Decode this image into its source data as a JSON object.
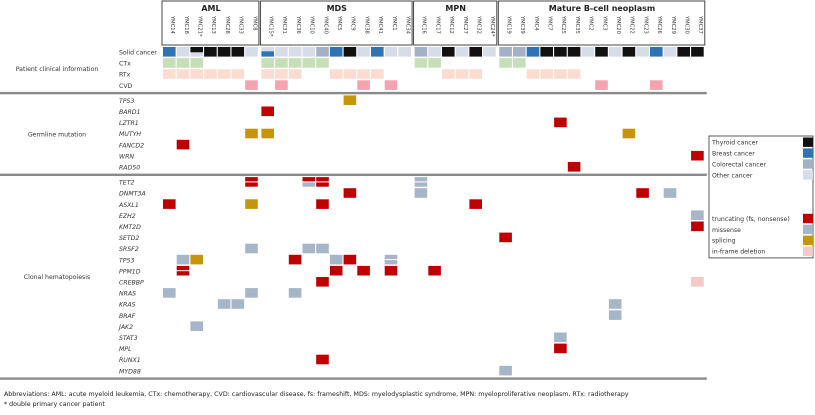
{
  "chart_data": {
    "type": "heatmap",
    "title": "",
    "groups": [
      {
        "name": "AML",
        "samples": [
          "YMC14",
          "YMC18",
          "YMC21*",
          "YMC13",
          "YMC28",
          "YMC33",
          "YMC8"
        ]
      },
      {
        "name": "MDS",
        "samples": [
          "YMC15*",
          "YMC31",
          "YMC36",
          "YMC10",
          "YMC40",
          "YMC5",
          "YMC9",
          "YMC38",
          "YMC41",
          "YMC1",
          "YMC34"
        ]
      },
      {
        "name": "MPN",
        "samples": [
          "YMC16",
          "YMC17",
          "YMC12",
          "YMC27",
          "YMC32",
          "YMC24*"
        ]
      },
      {
        "name": "Mature B-cell neoplasm",
        "samples": [
          "YMC19",
          "YMC39",
          "YMC4",
          "YMC7",
          "YMC25",
          "YMC35",
          "YMC2",
          "YMC3",
          "YMC20",
          "YMC22",
          "YMC23",
          "YMC26",
          "YMC29",
          "YMC30",
          "YMC37"
        ]
      }
    ],
    "sections": [
      {
        "name": "Patient clinical information",
        "rows": [
          {
            "label": "Solid cancer",
            "gene": false,
            "values": [
              "breast",
              "other",
              "thyroid*",
              "thyroid",
              "thyroid",
              "thyroid",
              "other",
              "breast*",
              "other",
              "other",
              "other",
              "colorectal",
              "breast",
              "thyroid",
              "other",
              "breast",
              "other",
              "other",
              "colorectal",
              "other",
              "thyroid",
              "other",
              "thyroid",
              "other",
              "colorectal",
              "colorectal",
              "breast",
              "thyroid",
              "thyroid",
              "thyroid",
              "other",
              "thyroid",
              "other",
              "thyroid",
              "other",
              "breast",
              "other",
              "thyroid",
              "thyroid"
            ]
          },
          {
            "label": "CTx",
            "gene": false,
            "values": [
              "ctx",
              "ctx",
              "ctx",
              "",
              "",
              "",
              "",
              "ctx",
              "ctx",
              "ctx",
              "ctx",
              "ctx",
              "",
              "",
              "",
              "",
              "",
              "",
              "ctx",
              "ctx",
              "",
              "",
              "",
              "",
              "ctx",
              "ctx",
              "",
              "",
              "",
              "",
              "",
              "",
              "",
              "",
              "",
              "",
              "",
              "",
              ""
            ]
          },
          {
            "label": "RTx",
            "gene": false,
            "values": [
              "rtx",
              "rtx",
              "rtx",
              "rtx",
              "rtx",
              "rtx",
              "",
              "rtx",
              "rtx",
              "rtx",
              "",
              "",
              "rtx",
              "rtx",
              "rtx",
              "rtx",
              "",
              "",
              "",
              "",
              "rtx",
              "rtx",
              "rtx",
              "",
              "",
              "",
              "rtx",
              "rtx",
              "rtx",
              "rtx",
              "",
              "",
              "",
              "",
              "",
              "",
              "",
              "",
              ""
            ]
          },
          {
            "label": "CVD",
            "gene": false,
            "values": [
              "",
              "",
              "",
              "",
              "",
              "",
              "cvd",
              "",
              "cvd",
              "",
              "",
              "",
              "",
              "",
              "cvd",
              "",
              "cvd",
              "",
              "",
              "",
              "",
              "",
              "",
              "",
              "",
              "",
              "",
              "",
              "",
              "",
              "",
              "cvd",
              "",
              "",
              "",
              "cvd",
              "",
              "",
              ""
            ]
          }
        ]
      },
      {
        "name": "Germline mutation",
        "rows": [
          {
            "label": "TP53",
            "gene": true,
            "hits": [
              {
                "s": "YMC9",
                "t": "splicing"
              }
            ]
          },
          {
            "label": "BARD1",
            "gene": true,
            "hits": [
              {
                "s": "YMC15*",
                "t": "truncating"
              }
            ]
          },
          {
            "label": "LZTR1",
            "gene": true,
            "hits": [
              {
                "s": "YMC25",
                "t": "truncating"
              }
            ]
          },
          {
            "label": "MUTYH",
            "gene": true,
            "hits": [
              {
                "s": "YMC8",
                "t": "splicing"
              },
              {
                "s": "YMC15*",
                "t": "splicing"
              },
              {
                "s": "YMC22",
                "t": "splicing"
              }
            ]
          },
          {
            "label": "FANCD2",
            "gene": true,
            "hits": [
              {
                "s": "YMC18",
                "t": "truncating"
              }
            ]
          },
          {
            "label": "WRN",
            "gene": true,
            "hits": [
              {
                "s": "YMC37",
                "t": "truncating"
              }
            ]
          },
          {
            "label": "RAD50",
            "gene": true,
            "hits": [
              {
                "s": "YMC35",
                "t": "truncating"
              }
            ]
          }
        ]
      },
      {
        "name": "Clonal hematopoiesis",
        "rows": [
          {
            "label": "TET2",
            "gene": true,
            "hits": [
              {
                "s": "YMC8",
                "t": "truncating",
                "t2": "truncating"
              },
              {
                "s": "YMC10",
                "t": "truncating",
                "t2": "missense"
              },
              {
                "s": "YMC40",
                "t": "truncating",
                "t2": "truncating"
              },
              {
                "s": "YMC16",
                "t": "missense",
                "t2": "missense"
              }
            ]
          },
          {
            "label": "DNMT3A",
            "gene": true,
            "hits": [
              {
                "s": "YMC9",
                "t": "truncating"
              },
              {
                "s": "YMC16",
                "t": "missense"
              },
              {
                "s": "YMC23",
                "t": "truncating"
              },
              {
                "s": "YMC29",
                "t": "missense"
              }
            ]
          },
          {
            "label": "ASXL1",
            "gene": true,
            "hits": [
              {
                "s": "YMC14",
                "t": "truncating"
              },
              {
                "s": "YMC8",
                "t": "splicing"
              },
              {
                "s": "YMC40",
                "t": "truncating"
              },
              {
                "s": "YMC32",
                "t": "truncating"
              }
            ]
          },
          {
            "label": "EZH2",
            "gene": true,
            "hits": [
              {
                "s": "YMC37",
                "t": "missense"
              }
            ]
          },
          {
            "label": "KMT2D",
            "gene": true,
            "hits": [
              {
                "s": "YMC37",
                "t": "truncating"
              }
            ]
          },
          {
            "label": "SETD2",
            "gene": true,
            "hits": [
              {
                "s": "YMC19",
                "t": "truncating"
              }
            ]
          },
          {
            "label": "SRSF2",
            "gene": true,
            "hits": [
              {
                "s": "YMC8",
                "t": "missense"
              },
              {
                "s": "YMC10",
                "t": "missense"
              },
              {
                "s": "YMC40",
                "t": "missense"
              }
            ]
          },
          {
            "label": "TP53",
            "gene": true,
            "hits": [
              {
                "s": "YMC18",
                "t": "missense"
              },
              {
                "s": "YMC21*",
                "t": "splicing"
              },
              {
                "s": "YMC36",
                "t": "truncating"
              },
              {
                "s": "YMC5",
                "t": "missense"
              },
              {
                "s": "YMC9",
                "t": "truncating"
              },
              {
                "s": "YMC1",
                "t": "missense",
                "t2": "missense"
              }
            ]
          },
          {
            "label": "PPM1D",
            "gene": true,
            "hits": [
              {
                "s": "YMC18",
                "t": "truncating",
                "t2": "truncating"
              },
              {
                "s": "YMC5",
                "t": "truncating"
              },
              {
                "s": "YMC38",
                "t": "truncating"
              },
              {
                "s": "YMC1",
                "t": "truncating"
              },
              {
                "s": "YMC17",
                "t": "truncating"
              }
            ]
          },
          {
            "label": "CREBBP",
            "gene": true,
            "hits": [
              {
                "s": "YMC40",
                "t": "truncating"
              },
              {
                "s": "YMC37",
                "t": "inframe"
              }
            ]
          },
          {
            "label": "NRAS",
            "gene": true,
            "hits": [
              {
                "s": "YMC14",
                "t": "missense"
              },
              {
                "s": "YMC8",
                "t": "missense"
              },
              {
                "s": "YMC36",
                "t": "missense"
              }
            ]
          },
          {
            "label": "KRAS",
            "gene": true,
            "hits": [
              {
                "s": "YMC28",
                "t": "missense"
              },
              {
                "s": "YMC33",
                "t": "missense"
              },
              {
                "s": "YMC20",
                "t": "missense"
              }
            ]
          },
          {
            "label": "BRAF",
            "gene": true,
            "hits": [
              {
                "s": "YMC20",
                "t": "missense"
              }
            ]
          },
          {
            "label": "JAK2",
            "gene": true,
            "hits": [
              {
                "s": "YMC21*",
                "t": "missense"
              }
            ]
          },
          {
            "label": "STAT3",
            "gene": true,
            "hits": [
              {
                "s": "YMC25",
                "t": "missense"
              }
            ]
          },
          {
            "label": "MPL",
            "gene": true,
            "hits": [
              {
                "s": "YMC25",
                "t": "truncating"
              }
            ]
          },
          {
            "label": "RUNX1",
            "gene": true,
            "hits": [
              {
                "s": "YMC40",
                "t": "truncating"
              }
            ]
          },
          {
            "label": "MYD88",
            "gene": true,
            "hits": [
              {
                "s": "YMC19",
                "t": "missense"
              }
            ]
          }
        ]
      }
    ],
    "legend": {
      "cancer": [
        {
          "key": "thyroid",
          "label": "Thyroid cancer",
          "color": "#111111"
        },
        {
          "key": "breast",
          "label": "Breast cancer",
          "color": "#2e74b5"
        },
        {
          "key": "colorectal",
          "label": "Colorectal cancer",
          "color": "#a3b1c6"
        },
        {
          "key": "other",
          "label": "Other cancer",
          "color": "#d6dde8"
        }
      ],
      "mutation": [
        {
          "key": "truncating",
          "label": "truncating (fs, nonsense)",
          "color": "#c00000"
        },
        {
          "key": "missense",
          "label": "missense",
          "color": "#a7b5c9"
        },
        {
          "key": "splicing",
          "label": "splicing",
          "color": "#c5950a"
        },
        {
          "key": "inframe",
          "label": "in-frame deletion",
          "color": "#f6c9c9"
        }
      ],
      "clinical": [
        {
          "key": "ctx",
          "label": "CTx",
          "color": "#c7dfb9"
        },
        {
          "key": "rtx",
          "label": "RTx",
          "color": "#fbdcd0"
        },
        {
          "key": "cvd",
          "label": "CVD",
          "color": "#f4a3af"
        }
      ]
    }
  },
  "footnotes": {
    "abbreviations": "Abbreviations: AML: acute myeloid leukemia, CTx: chemotherapy, CVD: cardiovascular disease, fs: frameshift, MDS: myelodysplastic syndrome, MPN: myeloproliferative neoplasm, RTx: radiotherapy",
    "note": "* double primary cancer patient"
  }
}
